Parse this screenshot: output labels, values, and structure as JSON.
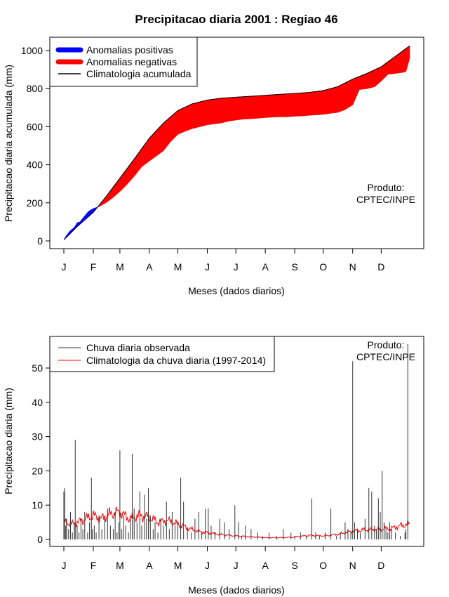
{
  "title": "Precipitacao diaria 2001 : Regiao 46",
  "product_line1": "Produto:",
  "product_line2": "CPTEC/INPE",
  "colors": {
    "positive": "#0000ff",
    "negative": "#ff0000",
    "climatology_line": "#000000",
    "observed_bars": "#333333",
    "climatology_daily": "#ff0000"
  },
  "chart_data": [
    {
      "type": "area",
      "ylabel": "Precipitacao diaria acumulada (mm)",
      "xlabel": "Meses (dados diarios)",
      "month_ticks": [
        "J",
        "F",
        "M",
        "A",
        "M",
        "J",
        "J",
        "A",
        "S",
        "O",
        "N",
        "D"
      ],
      "month_start_days": [
        1,
        32,
        60,
        91,
        121,
        152,
        182,
        213,
        244,
        274,
        305,
        335
      ],
      "y_ticks": [
        0,
        200,
        400,
        600,
        800,
        1000
      ],
      "xlim": [
        1,
        365
      ],
      "ylim": [
        0,
        1050
      ],
      "legend": [
        "Anomalias positivas",
        "Anomalias negativas",
        "Climatologia acumulada"
      ],
      "legend_position": "top-left",
      "climatology_cumulative": {
        "day": [
          1,
          15,
          32,
          45,
          60,
          75,
          91,
          106,
          121,
          136,
          152,
          167,
          182,
          198,
          213,
          228,
          244,
          259,
          274,
          289,
          305,
          320,
          335,
          350,
          365
        ],
        "value": [
          5,
          75,
          150,
          230,
          330,
          430,
          540,
          620,
          685,
          720,
          740,
          750,
          755,
          760,
          765,
          770,
          775,
          780,
          790,
          810,
          850,
          880,
          915,
          970,
          1025
        ]
      },
      "observed_cumulative": {
        "day": [
          1,
          4,
          8,
          12,
          15,
          18,
          22,
          27,
          32,
          38,
          45,
          52,
          60,
          67,
          75,
          83,
          91,
          98,
          106,
          113,
          121,
          128,
          136,
          144,
          152,
          159,
          167,
          175,
          182,
          190,
          198,
          206,
          213,
          220,
          228,
          236,
          244,
          252,
          259,
          266,
          274,
          281,
          289,
          297,
          305,
          312,
          320,
          328,
          335,
          342,
          350,
          357,
          361,
          365
        ],
        "value": [
          5,
          30,
          55,
          70,
          95,
          100,
          125,
          155,
          170,
          180,
          200,
          225,
          260,
          295,
          340,
          390,
          420,
          445,
          475,
          520,
          560,
          575,
          590,
          600,
          610,
          615,
          620,
          630,
          635,
          640,
          642,
          645,
          648,
          650,
          652,
          652,
          655,
          657,
          660,
          662,
          665,
          670,
          675,
          690,
          715,
          795,
          800,
          810,
          840,
          875,
          880,
          885,
          890,
          960
        ]
      }
    },
    {
      "type": "bar",
      "ylabel": "Precipitacao diaria (mm)",
      "xlabel": "Meses (dados diarios)",
      "month_ticks": [
        "J",
        "F",
        "M",
        "A",
        "M",
        "J",
        "J",
        "A",
        "S",
        "O",
        "N",
        "D"
      ],
      "month_start_days": [
        1,
        32,
        60,
        91,
        121,
        152,
        182,
        213,
        244,
        274,
        305,
        335
      ],
      "y_ticks": [
        0,
        10,
        20,
        30,
        40,
        50
      ],
      "xlim": [
        1,
        365
      ],
      "ylim": [
        0,
        58
      ],
      "legend": [
        "Chuva diaria observada",
        "Climatologia da chuva diaria (1997-2014)"
      ],
      "legend_position": "top-left",
      "observed_daily": {
        "day": [
          1,
          2,
          3,
          4,
          6,
          8,
          10,
          12,
          13,
          15,
          17,
          19,
          21,
          23,
          26,
          28,
          30,
          31,
          33,
          35,
          38,
          41,
          44,
          47,
          50,
          53,
          55,
          57,
          59,
          60,
          62,
          64,
          66,
          69,
          71,
          73,
          75,
          78,
          81,
          83,
          86,
          88,
          90,
          92,
          95,
          97,
          100,
          103,
          106,
          109,
          112,
          115,
          118,
          121,
          124,
          127,
          131,
          135,
          139,
          143,
          146,
          150,
          153,
          156,
          160,
          165,
          170,
          175,
          181,
          185,
          188,
          192,
          198,
          205,
          210,
          217,
          225,
          232,
          240,
          244,
          250,
          256,
          262,
          266,
          270,
          276,
          282,
          288,
          292,
          297,
          300,
          303,
          305,
          307,
          310,
          313,
          318,
          322,
          325,
          328,
          330,
          332,
          334,
          336,
          338,
          340,
          342,
          344,
          346,
          350,
          355,
          360,
          361,
          363
        ],
        "value": [
          14,
          15,
          4,
          6,
          3,
          8,
          2,
          5,
          29,
          4,
          2,
          6,
          3,
          8,
          2,
          5,
          18,
          3,
          4,
          2,
          7,
          3,
          6,
          9,
          4,
          3,
          8,
          2,
          5,
          26,
          3,
          7,
          4,
          2,
          6,
          25,
          9,
          5,
          14,
          4,
          13,
          6,
          15,
          7,
          3,
          5,
          2,
          6,
          4,
          11,
          3,
          8,
          4,
          5,
          18,
          11,
          3,
          2,
          6,
          8,
          2,
          9,
          9,
          4,
          2,
          6,
          5,
          3,
          10,
          5,
          1,
          4,
          3,
          2,
          1,
          2,
          1,
          3,
          2,
          1,
          2,
          1,
          12,
          2,
          1,
          2,
          9,
          1,
          2,
          5,
          3,
          2,
          52,
          5,
          3,
          2,
          6,
          15,
          14,
          4,
          3,
          12,
          8,
          20,
          5,
          3,
          2,
          5,
          3,
          2,
          1,
          2,
          3,
          57
        ]
      },
      "climatology_daily": {
        "day": [
          1,
          10,
          20,
          32,
          40,
          50,
          60,
          70,
          80,
          91,
          100,
          110,
          121,
          130,
          140,
          152,
          165,
          182,
          195,
          213,
          230,
          244,
          260,
          274,
          290,
          305,
          320,
          335,
          345,
          355,
          365
        ],
        "value": [
          5,
          4.5,
          5.5,
          7,
          6,
          7.5,
          8,
          6,
          7,
          6.5,
          5,
          5.5,
          4.5,
          3.5,
          2.5,
          2,
          1.5,
          1,
          0.8,
          0.5,
          0.5,
          0.7,
          1.2,
          1,
          1.5,
          2.5,
          2.8,
          3,
          3.2,
          4,
          4.5
        ]
      }
    }
  ]
}
